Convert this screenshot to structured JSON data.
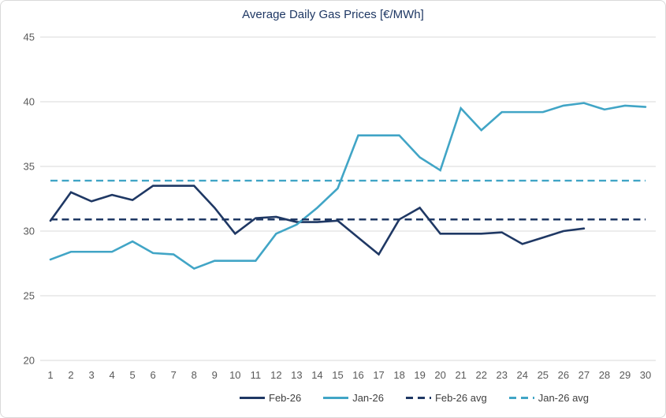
{
  "title": "Average Daily Gas Prices [€/MWh]",
  "colors": {
    "navy": "#1F3864",
    "light_blue": "#41A5C6",
    "gridline": "#D9D9D9",
    "axis_text": "#595959",
    "legend_text": "#404040",
    "background": "#FFFFFF",
    "frame_border": "#D9D9D9"
  },
  "chart_data": {
    "type": "line",
    "title": "Average Daily Gas Prices [€/MWh]",
    "x": [
      1,
      2,
      3,
      4,
      5,
      6,
      7,
      8,
      9,
      10,
      11,
      12,
      13,
      14,
      15,
      16,
      17,
      18,
      19,
      20,
      21,
      22,
      23,
      24,
      25,
      26,
      27,
      28,
      29,
      30
    ],
    "xlabel": "",
    "ylabel": "",
    "ylim": [
      20,
      45
    ],
    "yticks": [
      45,
      40,
      35,
      30,
      25,
      20
    ],
    "grid": true,
    "legend_position": "bottom",
    "series": [
      {
        "name": "Feb-26",
        "style": "solid",
        "color": "#1F3864",
        "values": [
          30.8,
          33.0,
          32.3,
          32.8,
          32.4,
          33.5,
          33.5,
          33.5,
          31.8,
          29.8,
          31.0,
          31.1,
          30.7,
          30.7,
          30.8,
          29.5,
          28.2,
          30.9,
          31.8,
          29.8,
          29.8,
          29.8,
          29.9,
          29.0,
          29.5,
          30.0,
          30.2,
          null,
          null,
          null
        ]
      },
      {
        "name": "Jan-26",
        "style": "solid",
        "color": "#41A5C6",
        "values": [
          27.8,
          28.4,
          28.4,
          28.4,
          29.2,
          28.3,
          28.2,
          27.1,
          27.7,
          27.7,
          27.7,
          29.8,
          30.5,
          31.8,
          33.3,
          37.4,
          37.4,
          37.4,
          35.7,
          34.7,
          39.5,
          37.8,
          39.2,
          39.2,
          39.2,
          39.7,
          39.9,
          39.4,
          39.7,
          39.6
        ]
      },
      {
        "name": "Feb-26 avg",
        "style": "dashed",
        "color": "#1F3864",
        "constant_value": 30.9
      },
      {
        "name": "Jan-26 avg",
        "style": "dashed",
        "color": "#41A5C6",
        "constant_value": 33.9
      }
    ]
  }
}
